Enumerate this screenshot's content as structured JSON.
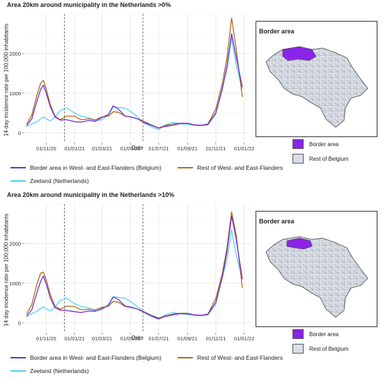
{
  "legend": {
    "series": [
      {
        "name": "Border area in West- and East-Flanders (Belgium)",
        "color": "#6f2bd9"
      },
      {
        "name": "Rest of West- and East-Flanders",
        "color": "#b06a1c"
      },
      {
        "name": "Zeeland (Netherlands)",
        "color": "#4fd0f0"
      }
    ]
  },
  "map": {
    "title": "Border area",
    "legend": [
      {
        "label": "Border area",
        "color": "#8a24e8"
      },
      {
        "label": "Rest of Belgium",
        "color": "#d9dde6"
      }
    ]
  },
  "chart_data": [
    {
      "type": "line",
      "title": "Area 20km around municipality in the Netherlands >0%",
      "xlabel": "Date",
      "ylabel": "14 day incidence rate per 100,000 inhabitants",
      "x_ticks": [
        "01/11/20",
        "01/01/21",
        "01/03/21",
        "01/05/21",
        "01/07/21",
        "01/09/21",
        "01/11/21",
        "01/01/22"
      ],
      "x_range": [
        "2020-09-15",
        "2022-01-15"
      ],
      "ylim": [
        -250,
        3000
      ],
      "y_ticks": [
        0,
        1000,
        2000
      ],
      "vlines": [
        "2020-12-10",
        "2021-05-28"
      ],
      "grid": true,
      "legend_position": "bottom",
      "x": [
        "2020-09-20",
        "2020-10-01",
        "2020-10-12",
        "2020-10-20",
        "2020-10-26",
        "2020-11-01",
        "2020-11-10",
        "2020-11-20",
        "2020-12-01",
        "2020-12-15",
        "2021-01-01",
        "2021-01-15",
        "2021-02-01",
        "2021-02-15",
        "2021-03-01",
        "2021-03-15",
        "2021-03-25",
        "2021-04-05",
        "2021-04-20",
        "2021-05-01",
        "2021-05-15",
        "2021-06-01",
        "2021-06-15",
        "2021-07-01",
        "2021-07-15",
        "2021-08-01",
        "2021-08-15",
        "2021-09-01",
        "2021-09-15",
        "2021-10-01",
        "2021-10-15",
        "2021-11-01",
        "2021-11-15",
        "2021-11-25",
        "2021-12-05",
        "2021-12-15",
        "2021-12-28"
      ],
      "series": [
        {
          "name": "Border area in West- and East-Flanders (Belgium)",
          "values": [
            180,
            350,
            800,
            1100,
            1200,
            1000,
            650,
            400,
            320,
            330,
            280,
            270,
            310,
            290,
            390,
            460,
            680,
            600,
            420,
            400,
            360,
            250,
            190,
            120,
            160,
            190,
            230,
            240,
            200,
            190,
            210,
            500,
            1100,
            1700,
            2500,
            1900,
            1150
          ]
        },
        {
          "name": "Rest of West- and East-Flanders",
          "values": [
            220,
            450,
            950,
            1250,
            1320,
            1100,
            700,
            420,
            330,
            420,
            420,
            330,
            350,
            330,
            400,
            420,
            530,
            520,
            420,
            400,
            360,
            280,
            200,
            120,
            180,
            220,
            240,
            240,
            200,
            190,
            220,
            600,
            1250,
            1900,
            2900,
            2100,
            900
          ]
        },
        {
          "name": "Zeeland (Netherlands)",
          "values": [
            160,
            220,
            280,
            350,
            400,
            350,
            300,
            400,
            560,
            630,
            500,
            420,
            380,
            300,
            330,
            460,
            650,
            640,
            620,
            540,
            420,
            240,
            150,
            80,
            200,
            260,
            230,
            210,
            190,
            180,
            200,
            470,
            1150,
            1600,
            2400,
            1700,
            1100
          ]
        }
      ]
    },
    {
      "type": "line",
      "title": "Area 20km around municipality in the Netherlands >10%",
      "xlabel": "Date",
      "ylabel": "14 day incidence rate per 100,000 inhabitants",
      "x_ticks": [
        "01/11/20",
        "01/01/21",
        "01/03/21",
        "01/05/21",
        "01/07/21",
        "01/09/21",
        "01/11/21",
        "01/01/22"
      ],
      "x_range": [
        "2020-09-15",
        "2022-01-15"
      ],
      "ylim": [
        -250,
        3000
      ],
      "y_ticks": [
        0,
        1000,
        2000
      ],
      "vlines": [
        "2020-12-10",
        "2021-05-28"
      ],
      "grid": true,
      "legend_position": "bottom",
      "x": [
        "2020-09-20",
        "2020-10-01",
        "2020-10-12",
        "2020-10-20",
        "2020-10-26",
        "2020-11-01",
        "2020-11-10",
        "2020-11-20",
        "2020-12-01",
        "2020-12-15",
        "2021-01-01",
        "2021-01-15",
        "2021-02-01",
        "2021-02-15",
        "2021-03-01",
        "2021-03-15",
        "2021-03-25",
        "2021-04-05",
        "2021-04-20",
        "2021-05-01",
        "2021-05-15",
        "2021-06-01",
        "2021-06-15",
        "2021-07-01",
        "2021-07-15",
        "2021-08-01",
        "2021-08-15",
        "2021-09-01",
        "2021-09-15",
        "2021-10-01",
        "2021-10-15",
        "2021-11-01",
        "2021-11-15",
        "2021-11-25",
        "2021-12-05",
        "2021-12-15",
        "2021-12-28"
      ],
      "series": [
        {
          "name": "Border area in West- and East-Flanders (Belgium)",
          "values": [
            170,
            330,
            760,
            1050,
            1180,
            980,
            620,
            380,
            320,
            310,
            280,
            260,
            300,
            290,
            360,
            440,
            650,
            590,
            420,
            400,
            350,
            260,
            180,
            100,
            160,
            200,
            230,
            230,
            200,
            190,
            210,
            520,
            1150,
            1800,
            2700,
            2100,
            1100
          ]
        },
        {
          "name": "Rest of West- and East-Flanders",
          "values": [
            220,
            460,
            980,
            1250,
            1280,
            1080,
            700,
            420,
            340,
            420,
            410,
            330,
            340,
            330,
            390,
            420,
            540,
            520,
            410,
            390,
            350,
            270,
            190,
            120,
            170,
            220,
            240,
            240,
            200,
            190,
            220,
            620,
            1250,
            1900,
            2800,
            2200,
            880
          ]
        },
        {
          "name": "Zeeland (Netherlands)",
          "values": [
            160,
            230,
            290,
            360,
            400,
            350,
            300,
            400,
            560,
            620,
            480,
            410,
            370,
            300,
            330,
            460,
            660,
            640,
            620,
            540,
            420,
            250,
            150,
            90,
            200,
            260,
            230,
            210,
            190,
            180,
            200,
            470,
            1150,
            1600,
            2350,
            1700,
            1100
          ]
        }
      ]
    }
  ]
}
